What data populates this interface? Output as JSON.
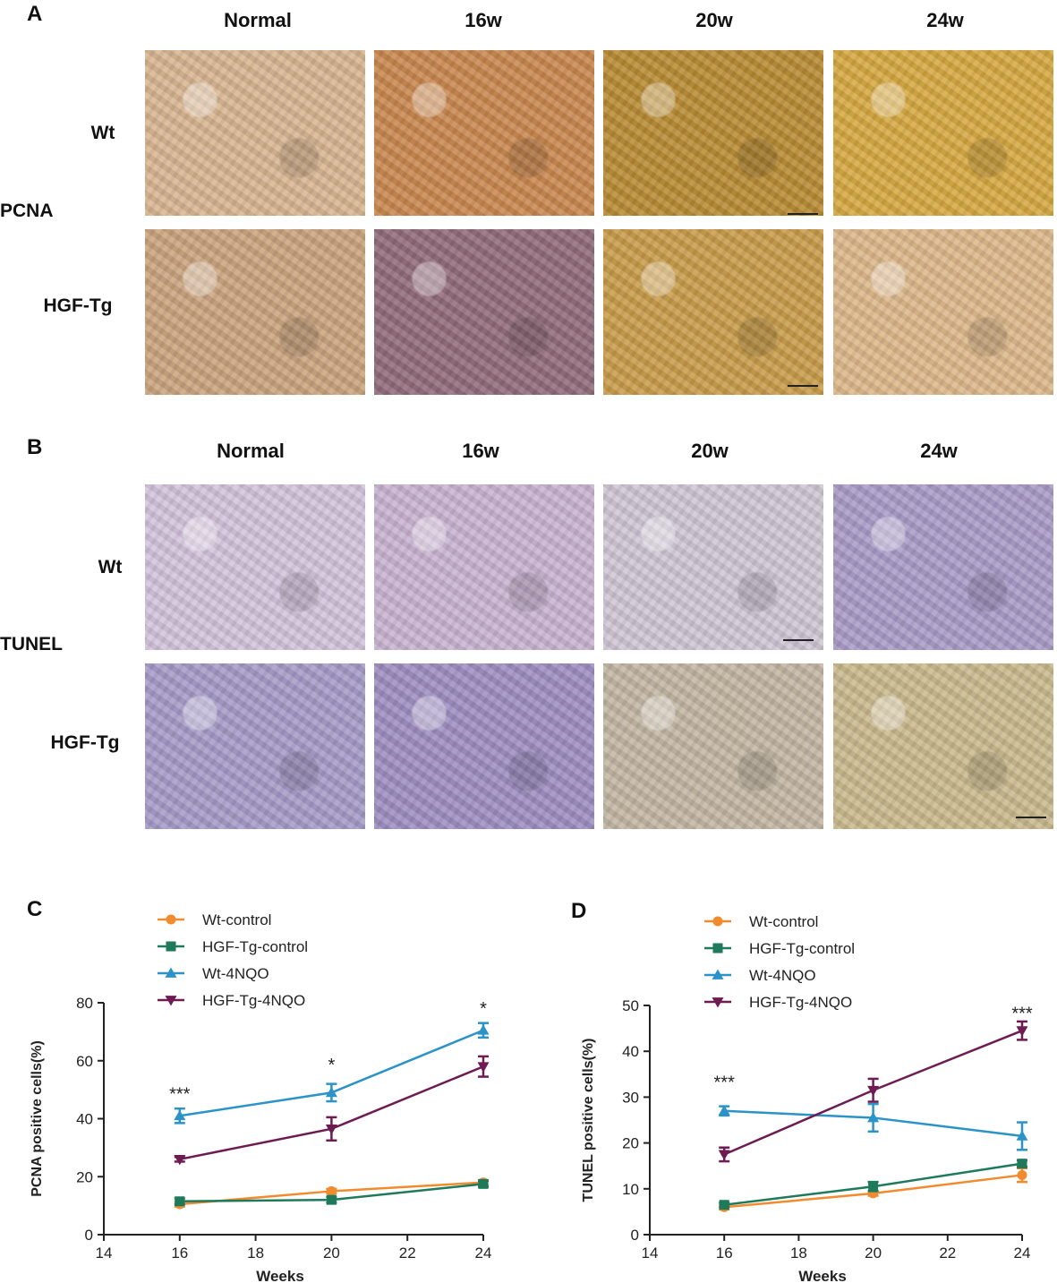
{
  "panels": {
    "A": {
      "letter": "A",
      "stain": "PCNA",
      "columns": [
        "Normal",
        "16w",
        "20w",
        "24w"
      ],
      "rows": [
        "Wt",
        "HGF-Tg"
      ]
    },
    "B": {
      "letter": "B",
      "stain": "TUNEL",
      "columns": [
        "Normal",
        "16w",
        "20w",
        "24w"
      ],
      "rows": [
        "Wt",
        "HGF-Tg"
      ]
    }
  },
  "tile_colors": {
    "A": [
      [
        "#d8b58e",
        "#c8864a",
        "#b78a2e",
        "#d6a83c"
      ],
      [
        "#c9a37a",
        "#8f6a76",
        "#c79b45",
        "#dcb887"
      ]
    ],
    "B": [
      [
        "#d3c3da",
        "#c8b3cf",
        "#cfc6d3",
        "#a99ac6"
      ],
      [
        "#a49ac6",
        "#9d8dbf",
        "#c2b6a0",
        "#c9b98a"
      ]
    ]
  },
  "chart_data": [
    {
      "letter": "C",
      "type": "line",
      "xlabel": "Weeks",
      "ylabel": "PCNA positive cells(%)",
      "xlim": [
        14,
        24
      ],
      "ylim": [
        0,
        80
      ],
      "xticks": [
        14,
        16,
        18,
        20,
        22,
        24
      ],
      "yticks": [
        0,
        20,
        40,
        60,
        80
      ],
      "x": [
        16,
        20,
        24
      ],
      "series": [
        {
          "name": "Wt-control",
          "marker": "circle",
          "color": "#f28a2e",
          "values": [
            10.5,
            15,
            18
          ],
          "errors": [
            0.8,
            0.8,
            0.8
          ]
        },
        {
          "name": "HGF-Tg-control",
          "marker": "square",
          "color": "#1e7a5a",
          "values": [
            11.5,
            12,
            17.5
          ],
          "errors": [
            1,
            1,
            1
          ]
        },
        {
          "name": "Wt-4NQO",
          "marker": "triangle-up",
          "color": "#2b93c8",
          "values": [
            41,
            49,
            70.5
          ],
          "errors": [
            2.5,
            3,
            2.5
          ]
        },
        {
          "name": "HGF-Tg-4NQO",
          "marker": "triangle-down",
          "color": "#6e1b52",
          "values": [
            26,
            36.5,
            58
          ],
          "errors": [
            0.8,
            4,
            3.5
          ]
        }
      ],
      "annotations": [
        {
          "x": 16,
          "y": 49,
          "text": "***"
        },
        {
          "x": 20,
          "y": 59,
          "text": "*"
        },
        {
          "x": 24,
          "y": 78.5,
          "text": "*"
        }
      ]
    },
    {
      "letter": "D",
      "type": "line",
      "xlabel": "Weeks",
      "ylabel": "TUNEL positive cells(%)",
      "xlim": [
        14,
        24
      ],
      "ylim": [
        0,
        50
      ],
      "xticks": [
        14,
        16,
        18,
        20,
        22,
        24
      ],
      "yticks": [
        0,
        10,
        20,
        30,
        40,
        50
      ],
      "x": [
        16,
        20,
        24
      ],
      "series": [
        {
          "name": "Wt-control",
          "marker": "circle",
          "color": "#f28a2e",
          "values": [
            6,
            9,
            13
          ],
          "errors": [
            0.5,
            0.5,
            1.5
          ]
        },
        {
          "name": "HGF-Tg-control",
          "marker": "square",
          "color": "#1e7a5a",
          "values": [
            6.5,
            10.5,
            15.5
          ],
          "errors": [
            0.5,
            1,
            0.7
          ]
        },
        {
          "name": "Wt-4NQO",
          "marker": "triangle-up",
          "color": "#2b93c8",
          "values": [
            27,
            25.5,
            21.5
          ],
          "errors": [
            1,
            3,
            3
          ]
        },
        {
          "name": "HGF-Tg-4NQO",
          "marker": "triangle-down",
          "color": "#6e1b52",
          "values": [
            17.5,
            31.5,
            44.5
          ],
          "errors": [
            1.5,
            2.5,
            2
          ]
        }
      ],
      "annotations": [
        {
          "x": 16,
          "y": 33.5,
          "text": "***"
        },
        {
          "x": 24,
          "y": 48.5,
          "text": "***"
        }
      ]
    }
  ]
}
